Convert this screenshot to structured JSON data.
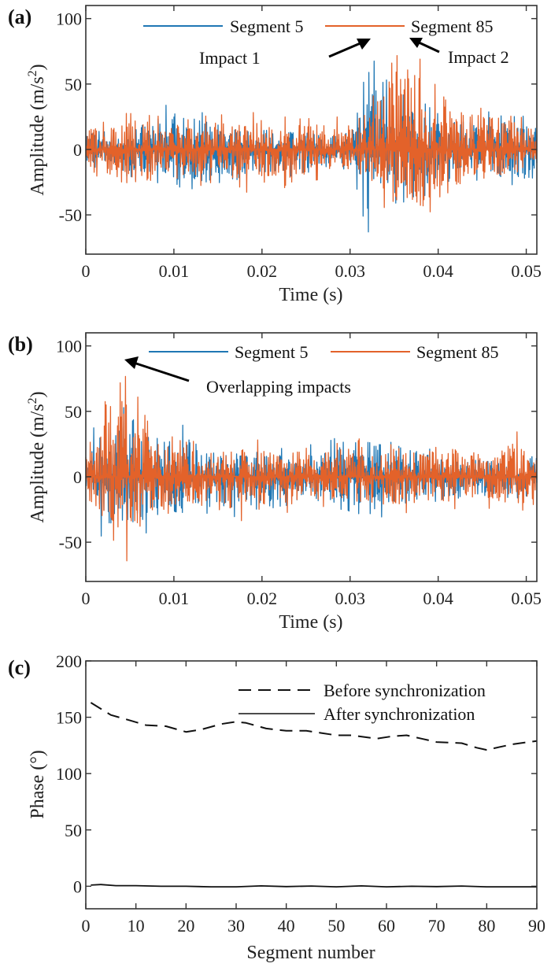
{
  "figure": {
    "panels": [
      "(a)",
      "(b)",
      "(c)"
    ]
  },
  "colors": {
    "segment5": "#1f77b4",
    "segment85": "#e3622a",
    "phase": "#111111"
  },
  "chart_data": [
    {
      "id": "a",
      "type": "line",
      "panel_label": "(a)",
      "title": "",
      "xlabel": "Time (s)",
      "ylabel": "Amplitude (m/s",
      "ylabel_sup": "2",
      "ylabel_end": ")",
      "xlim": [
        0,
        0.0512
      ],
      "ylim": [
        -80,
        110
      ],
      "xticks": [
        0,
        0.01,
        0.02,
        0.03,
        0.04,
        0.05
      ],
      "xtick_labels": [
        "0",
        "0.01",
        "0.02",
        "0.03",
        "0.04",
        "0.05"
      ],
      "yticks": [
        -50,
        0,
        50,
        100
      ],
      "ytick_labels": [
        "-50",
        "0",
        "50",
        "100"
      ],
      "grid": false,
      "legend": {
        "placement": "top",
        "entries": [
          "Segment 5",
          "Segment 85"
        ]
      },
      "annotations": [
        {
          "text": "Impact 1",
          "points_to": [
            0.0326,
            86
          ]
        },
        {
          "text": "Impact 2",
          "points_to": [
            0.0362,
            88
          ]
        }
      ],
      "series": [
        {
          "name": "Segment 5",
          "color_key": "segment5",
          "description": "broadband vibration ~±20 m/s², impact burst near 0.032–0.034 s",
          "envelope": [
            [
              0,
              18,
              -20
            ],
            [
              0.005,
              20,
              -22
            ],
            [
              0.01,
              38,
              -30
            ],
            [
              0.015,
              25,
              -35
            ],
            [
              0.02,
              22,
              -25
            ],
            [
              0.025,
              18,
              -20
            ],
            [
              0.03,
              12,
              -15
            ],
            [
              0.032,
              86,
              -67
            ],
            [
              0.034,
              55,
              -50
            ],
            [
              0.037,
              40,
              -40
            ],
            [
              0.04,
              30,
              -35
            ],
            [
              0.045,
              30,
              -25
            ],
            [
              0.0512,
              25,
              -35
            ]
          ]
        },
        {
          "name": "Segment 85",
          "color_key": "segment85",
          "description": "broadband vibration ~±20 m/s², impact burst near 0.035–0.039 s",
          "envelope": [
            [
              0,
              20,
              -15
            ],
            [
              0.005,
              30,
              -38
            ],
            [
              0.01,
              25,
              -25
            ],
            [
              0.015,
              28,
              -30
            ],
            [
              0.02,
              30,
              -35
            ],
            [
              0.025,
              25,
              -25
            ],
            [
              0.03,
              25,
              -20
            ],
            [
              0.032,
              40,
              -30
            ],
            [
              0.036,
              90,
              -65
            ],
            [
              0.038,
              78,
              -67
            ],
            [
              0.04,
              45,
              -40
            ],
            [
              0.045,
              35,
              -30
            ],
            [
              0.0512,
              25,
              -20
            ]
          ]
        }
      ]
    },
    {
      "id": "b",
      "type": "line",
      "panel_label": "(b)",
      "title": "",
      "xlabel": "Time (s)",
      "ylabel": "Amplitude (m/s",
      "ylabel_sup": "2",
      "ylabel_end": ")",
      "xlim": [
        0,
        0.0512
      ],
      "ylim": [
        -80,
        110
      ],
      "xticks": [
        0,
        0.01,
        0.02,
        0.03,
        0.04,
        0.05
      ],
      "xtick_labels": [
        "0",
        "0.01",
        "0.02",
        "0.03",
        "0.04",
        "0.05"
      ],
      "yticks": [
        -50,
        0,
        50,
        100
      ],
      "ytick_labels": [
        "-50",
        "0",
        "50",
        "100"
      ],
      "grid": false,
      "legend": {
        "placement": "top-right",
        "entries": [
          "Segment 5",
          "Segment 85"
        ]
      },
      "annotations": [
        {
          "text": "Overlapping impacts",
          "points_to": [
            0.0036,
            88
          ]
        }
      ],
      "series": [
        {
          "name": "Segment 5",
          "color_key": "segment5",
          "description": "synchronized; impact burst near 0.002–0.005 s",
          "envelope": [
            [
              0,
              15,
              -20
            ],
            [
              0.002,
              70,
              -67
            ],
            [
              0.004,
              55,
              -50
            ],
            [
              0.006,
              45,
              -48
            ],
            [
              0.01,
              45,
              -38
            ],
            [
              0.015,
              28,
              -30
            ],
            [
              0.02,
              25,
              -35
            ],
            [
              0.025,
              25,
              -25
            ],
            [
              0.03,
              38,
              -30
            ],
            [
              0.035,
              35,
              -35
            ],
            [
              0.04,
              20,
              -25
            ],
            [
              0.045,
              20,
              -20
            ],
            [
              0.0512,
              15,
              -15
            ]
          ]
        },
        {
          "name": "Segment 85",
          "color_key": "segment85",
          "description": "synchronized; impact burst overlapping Segment 5 near 0.002–0.005 s",
          "envelope": [
            [
              0,
              25,
              -50
            ],
            [
              0.002,
              75,
              -55
            ],
            [
              0.003,
              90,
              -65
            ],
            [
              0.005,
              75,
              -67
            ],
            [
              0.007,
              45,
              -40
            ],
            [
              0.01,
              30,
              -30
            ],
            [
              0.015,
              30,
              -35
            ],
            [
              0.02,
              28,
              -35
            ],
            [
              0.025,
              25,
              -25
            ],
            [
              0.03,
              30,
              -25
            ],
            [
              0.035,
              35,
              -30
            ],
            [
              0.04,
              30,
              -25
            ],
            [
              0.045,
              25,
              -25
            ],
            [
              0.0512,
              40,
              -30
            ]
          ]
        }
      ]
    },
    {
      "id": "c",
      "type": "line",
      "panel_label": "(c)",
      "title": "",
      "xlabel": "Segment number",
      "ylabel": "Phase (°)",
      "xlim": [
        0,
        90
      ],
      "ylim": [
        -20,
        200
      ],
      "xticks": [
        0,
        10,
        20,
        30,
        40,
        50,
        60,
        70,
        80,
        90
      ],
      "xtick_labels": [
        "0",
        "10",
        "20",
        "30",
        "40",
        "50",
        "60",
        "70",
        "80",
        "90"
      ],
      "yticks": [
        0,
        50,
        100,
        150,
        200
      ],
      "ytick_labels": [
        "0",
        "50",
        "100",
        "150",
        "200"
      ],
      "grid": false,
      "legend": {
        "placement": "top-right",
        "entries": [
          "Before synchronization",
          "After synchronization"
        ]
      },
      "series": [
        {
          "name": "Before synchronization",
          "style": "dashed",
          "x": [
            1,
            5,
            9,
            12,
            16,
            20,
            23,
            27,
            30,
            32,
            36,
            40,
            44,
            47,
            50,
            53,
            58,
            61,
            64,
            67,
            70,
            75,
            78,
            80,
            85,
            90
          ],
          "y": [
            163,
            152,
            147,
            143,
            142,
            137,
            139,
            144,
            146,
            145,
            140,
            138,
            138,
            136,
            134,
            134,
            131,
            133,
            134,
            131,
            128,
            127,
            123,
            121,
            126,
            129
          ]
        },
        {
          "name": "After synchronization",
          "style": "solid",
          "x": [
            1,
            3,
            6,
            10,
            15,
            20,
            25,
            30,
            35,
            40,
            45,
            50,
            55,
            60,
            65,
            70,
            75,
            80,
            85,
            90
          ],
          "y": [
            1,
            1.5,
            0.5,
            0.5,
            0,
            0,
            -0.5,
            -0.5,
            0.3,
            -0.3,
            0.2,
            -0.5,
            0.3,
            -0.5,
            0,
            -0.3,
            0.2,
            -0.5,
            -0.5,
            -0.5
          ]
        }
      ]
    }
  ]
}
